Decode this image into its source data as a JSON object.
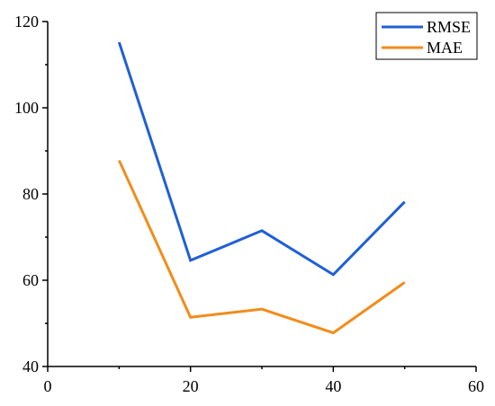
{
  "chart_data": {
    "type": "line",
    "title": "",
    "xlabel": "",
    "ylabel": "",
    "xlim": [
      0,
      60
    ],
    "ylim": [
      40,
      120
    ],
    "xticks": [
      0,
      20,
      40,
      60
    ],
    "yticks": [
      40,
      60,
      80,
      100,
      120
    ],
    "x": [
      10,
      20,
      30,
      40,
      50
    ],
    "series": [
      {
        "name": "RMSE",
        "color": "#1f5fd6",
        "values": [
          115.2,
          64.6,
          71.5,
          61.3,
          78.2
        ]
      },
      {
        "name": "MAE",
        "color": "#f28c1a",
        "values": [
          87.8,
          51.4,
          53.3,
          47.8,
          59.5
        ]
      }
    ],
    "grid": false,
    "legend": "top-right"
  }
}
